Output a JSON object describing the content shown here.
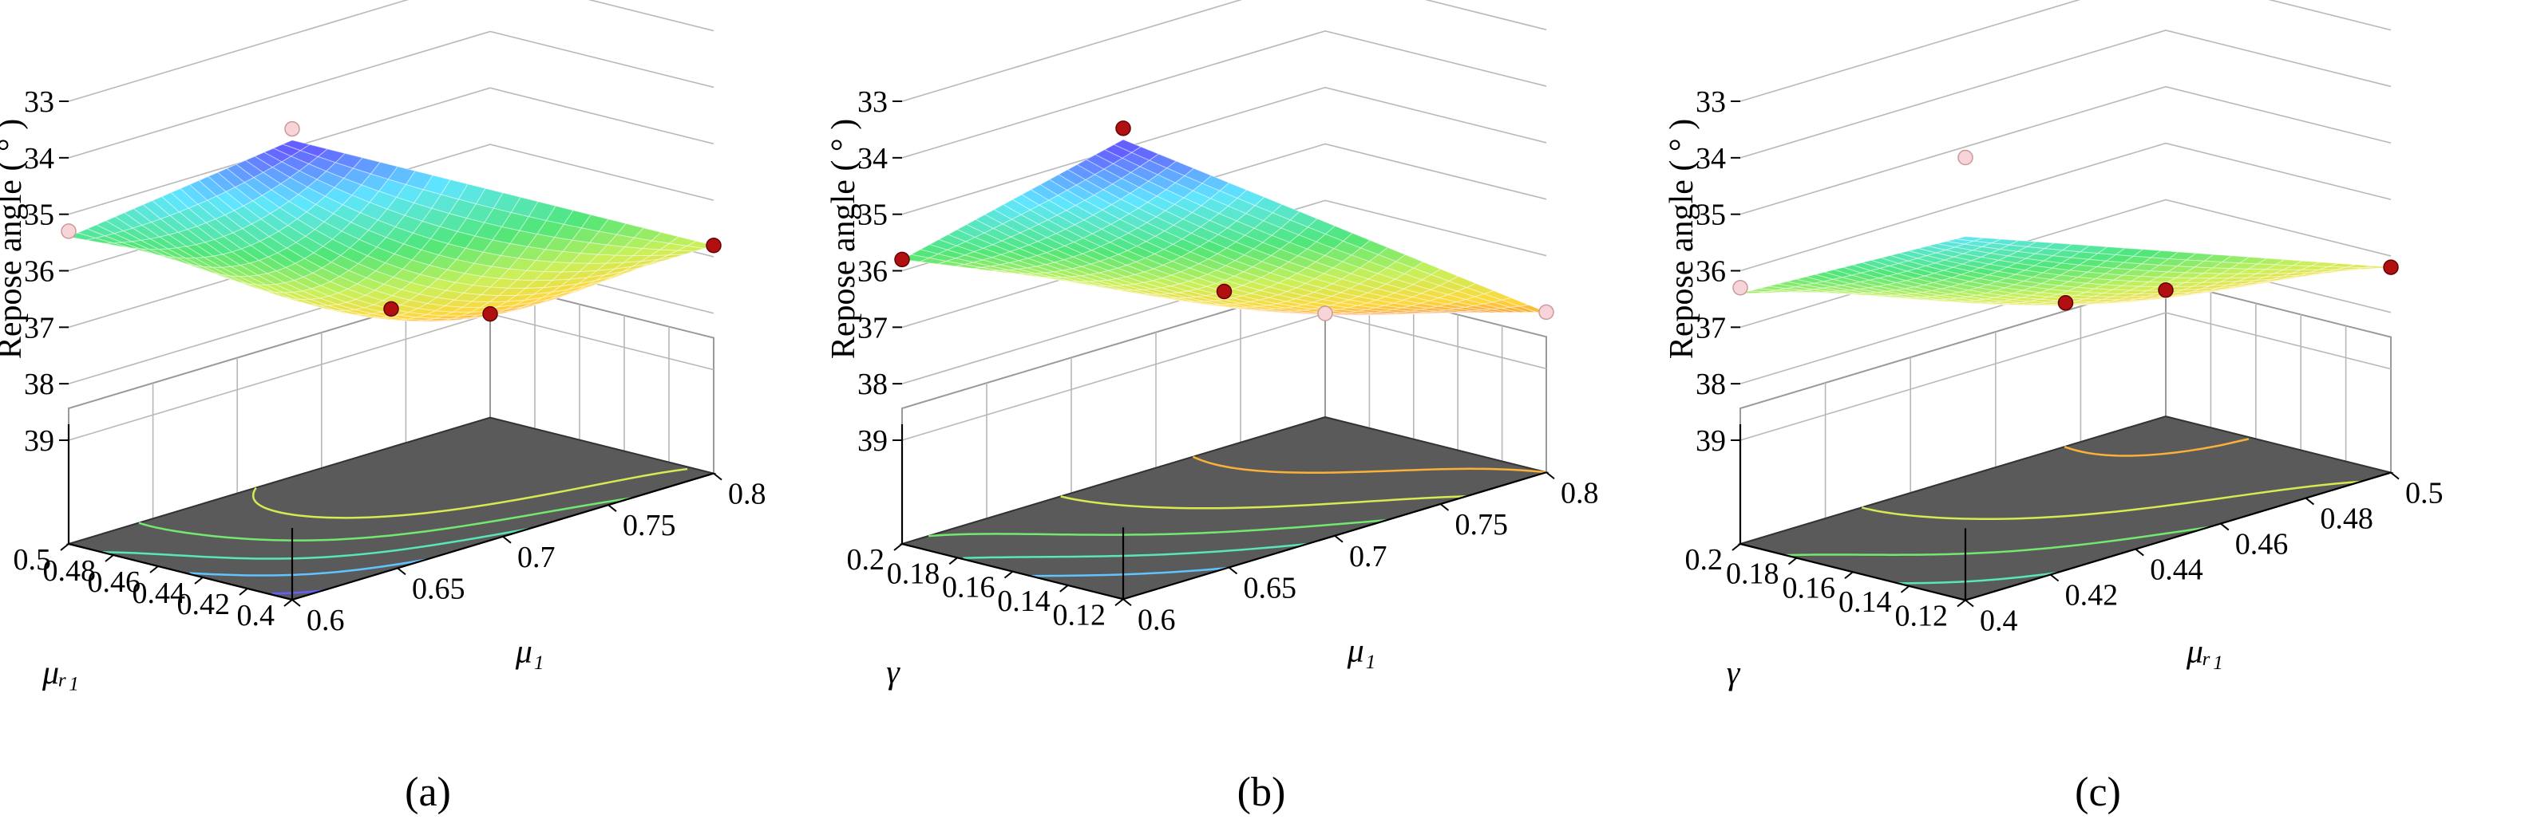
{
  "figure": {
    "panels": [
      "a",
      "b",
      "c"
    ]
  },
  "chart_data": [
    {
      "type": "surface3d",
      "caption": "(a)",
      "zlabel": "Repose angle ( ° )",
      "xlabel": "μ₁",
      "ylabel": "μᵣ₁",
      "xlim": [
        0.6,
        0.8
      ],
      "ylim": [
        0.4,
        0.5
      ],
      "zlim": [
        33,
        39
      ],
      "x_ticks": [
        "0.6",
        "0.65",
        "0.7",
        "0.75",
        "0.8"
      ],
      "y_ticks": [
        "0.4",
        "0.42",
        "0.44",
        "0.46",
        "0.48",
        "0.5"
      ],
      "z_ticks": [
        "33",
        "34",
        "35",
        "36",
        "37",
        "38",
        "39"
      ],
      "corners": {
        "x0y0": 32.7,
        "x1y0": 36.8,
        "x0y1": 35.4,
        "x1y1": 39.0
      },
      "center": 37.3,
      "design_points": [
        {
          "x": 0.6,
          "y": 0.4,
          "z": 32.5,
          "marker": "light"
        },
        {
          "x": 0.8,
          "y": 0.5,
          "z": 39.0,
          "marker": "dark"
        },
        {
          "x": 0.8,
          "y": 0.4,
          "z": 36.8,
          "marker": "dark"
        },
        {
          "x": 0.6,
          "y": 0.5,
          "z": 35.3,
          "marker": "light"
        },
        {
          "x": 0.7,
          "y": 0.45,
          "z": 37.3,
          "marker": "dark"
        }
      ],
      "contour_levels": [
        33,
        34,
        35,
        36,
        37
      ]
    },
    {
      "type": "surface3d",
      "caption": "(b)",
      "zlabel": "Repose angle ( ° )",
      "xlabel": "μ₁",
      "ylabel": "γ",
      "xlim": [
        0.6,
        0.8
      ],
      "ylim": [
        0.12,
        0.2
      ],
      "zlim": [
        33,
        39
      ],
      "x_ticks": [
        "0.6",
        "0.65",
        "0.7",
        "0.75",
        "0.8"
      ],
      "y_ticks": [
        "0.12",
        "0.14",
        "0.16",
        "0.18",
        "0.2"
      ],
      "z_ticks": [
        "33",
        "34",
        "35",
        "36",
        "37",
        "38",
        "39"
      ],
      "corners": {
        "x0y0": 32.7,
        "x1y0": 38.0,
        "x0y1": 35.8,
        "x1y1": 39.0
      },
      "center": 37.0,
      "design_points": [
        {
          "x": 0.6,
          "y": 0.12,
          "z": 32.5,
          "marker": "dark"
        },
        {
          "x": 0.8,
          "y": 0.2,
          "z": 39.0,
          "marker": "light"
        },
        {
          "x": 0.8,
          "y": 0.12,
          "z": 38.0,
          "marker": "light"
        },
        {
          "x": 0.6,
          "y": 0.2,
          "z": 35.8,
          "marker": "dark"
        },
        {
          "x": 0.7,
          "y": 0.16,
          "z": 37.0,
          "marker": "dark"
        }
      ],
      "contour_levels": [
        34,
        35,
        36,
        37,
        38
      ]
    },
    {
      "type": "surface3d",
      "caption": "(c)",
      "zlabel": "Repose angle ( ° )",
      "xlabel": "μᵣ₁",
      "ylabel": "γ",
      "xlim": [
        0.4,
        0.5
      ],
      "ylim": [
        0.12,
        0.2
      ],
      "zlim": [
        33,
        39
      ],
      "x_ticks": [
        "0.4",
        "0.42",
        "0.44",
        "0.46",
        "0.48",
        "0.5"
      ],
      "y_ticks": [
        "0.12",
        "0.14",
        "0.16",
        "0.18",
        "0.2"
      ],
      "z_ticks": [
        "33",
        "34",
        "35",
        "36",
        "37",
        "38",
        "39"
      ],
      "corners": {
        "x0y0": 34.4,
        "x1y0": 37.2,
        "x0y1": 36.4,
        "x1y1": 38.5
      },
      "center": 37.2,
      "design_points": [
        {
          "x": 0.4,
          "y": 0.12,
          "z": 33.0,
          "marker": "light"
        },
        {
          "x": 0.5,
          "y": 0.2,
          "z": 38.6,
          "marker": "dark"
        },
        {
          "x": 0.5,
          "y": 0.12,
          "z": 37.2,
          "marker": "dark"
        },
        {
          "x": 0.4,
          "y": 0.2,
          "z": 36.3,
          "marker": "light"
        },
        {
          "x": 0.45,
          "y": 0.16,
          "z": 37.2,
          "marker": "dark"
        }
      ],
      "contour_levels": [
        35,
        36,
        37,
        38
      ]
    }
  ]
}
